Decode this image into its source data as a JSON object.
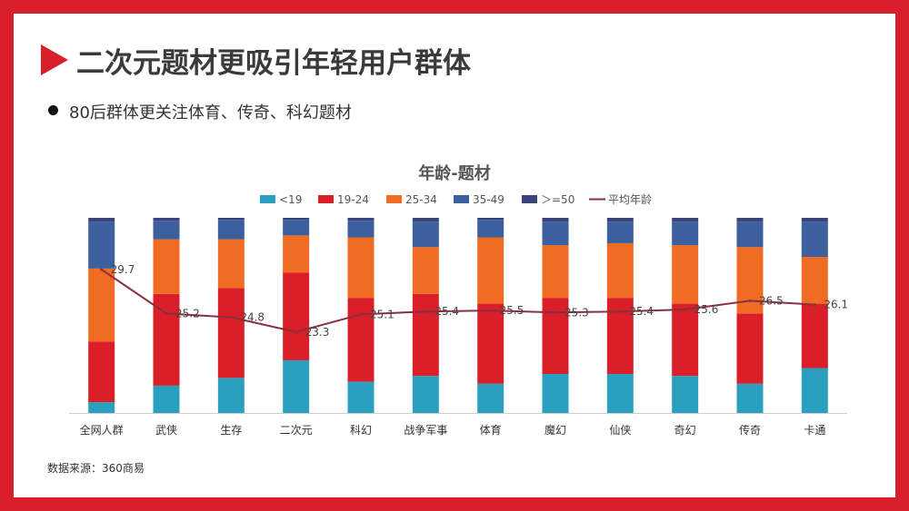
{
  "page": {
    "title": "二次元题材更吸引年轻用户群体",
    "bullet": "80后群体更关注体育、传奇、科幻题材",
    "source": "数据来源：360商易"
  },
  "colors": {
    "frame": "#d9202a",
    "title_arrow": "#d9202a"
  },
  "chart_data": {
    "type": "bar",
    "stacked": true,
    "title": "年龄-题材",
    "legend_position": "top",
    "grid": false,
    "ylim": [
      0,
      100
    ],
    "categories": [
      "全网人群",
      "武侠",
      "生存",
      "二次元",
      "科幻",
      "战争军事",
      "体育",
      "魔幻",
      "仙侠",
      "奇幻",
      "传奇",
      "卡通"
    ],
    "series": [
      {
        "name": "<19",
        "color": "#2aa0c0",
        "values": [
          5.5,
          14,
          18,
          27,
          16,
          19,
          15,
          20,
          20,
          19,
          15,
          23
        ]
      },
      {
        "name": "19-24",
        "color": "#da1f28",
        "values": [
          31,
          47,
          46,
          45,
          43,
          42,
          41,
          39,
          39,
          37,
          36,
          33
        ]
      },
      {
        "name": "25-34",
        "color": "#ef6c22",
        "values": [
          37.5,
          28,
          25,
          19,
          31,
          24,
          34,
          27,
          28,
          30,
          34,
          24
        ]
      },
      {
        "name": "35-49",
        "color": "#3c5f9e",
        "values": [
          24,
          9.5,
          10,
          8,
          8.5,
          13,
          9,
          12,
          11,
          12,
          13,
          18
        ]
      },
      {
        "name": "＞=50",
        "color": "#3b4478",
        "values": [
          2,
          1.5,
          1,
          1,
          1.5,
          2,
          1,
          2,
          2,
          2,
          2,
          2
        ]
      }
    ],
    "line_series": {
      "name": "平均年龄",
      "color": "#8a2f3e",
      "values": [
        29.7,
        25.2,
        24.8,
        23.3,
        25.1,
        25.4,
        25.5,
        25.3,
        25.4,
        25.6,
        26.5,
        26.1
      ],
      "labels": [
        "29.7",
        "25.2",
        "24.8",
        "23.3",
        "25.1",
        "25.4",
        "25.5",
        "25.3",
        "25.4",
        "25.6",
        "26.5",
        "26.1"
      ],
      "ylim": [
        15,
        35
      ]
    }
  }
}
